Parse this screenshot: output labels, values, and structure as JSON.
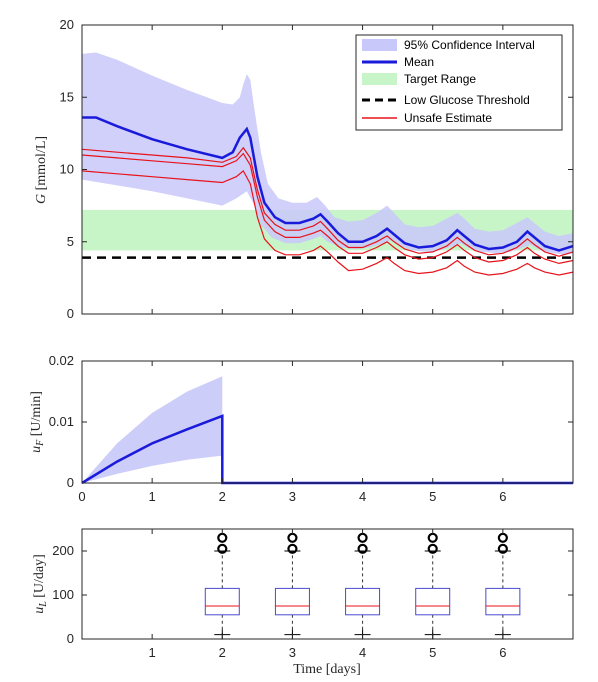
{
  "colors": {
    "ci_fill": "#c8c8fa",
    "mean": "#1a1adb",
    "target_fill": "#c8f5c8",
    "threshold": "#000000",
    "unsafe": "#e8121a",
    "box_edge": "#4a4ad0",
    "box_median": "#e8121a",
    "outlier": "#000000",
    "axis": "#262626"
  },
  "chart_data": [
    {
      "type": "line",
      "ylabel": "G [mmol/L]",
      "xlim": [
        0,
        7
      ],
      "ylim": [
        0,
        20
      ],
      "yticks": [
        "0",
        "5",
        "10",
        "15",
        "20"
      ],
      "legend_position": "top-right",
      "legend": [
        "95% Confidence Interval",
        "Mean",
        "Target Range",
        "Low Glucose Threshold",
        "Unsafe Estimate"
      ],
      "target_range": [
        4.4,
        7.2
      ],
      "low_glucose_threshold": 3.9,
      "ci_upper": [
        [
          0,
          18.0
        ],
        [
          0.2,
          18.1
        ],
        [
          0.5,
          17.6
        ],
        [
          1.0,
          16.5
        ],
        [
          1.5,
          15.5
        ],
        [
          2.0,
          14.6
        ],
        [
          2.15,
          14.5
        ],
        [
          2.25,
          15.0
        ],
        [
          2.3,
          15.9
        ],
        [
          2.35,
          16.6
        ],
        [
          2.4,
          16.2
        ],
        [
          2.45,
          14.4
        ],
        [
          2.55,
          11.2
        ],
        [
          2.65,
          9.0
        ],
        [
          2.8,
          8.0
        ],
        [
          3.0,
          7.7
        ],
        [
          3.2,
          7.7
        ],
        [
          3.35,
          8.1
        ],
        [
          3.45,
          7.6
        ],
        [
          3.6,
          6.7
        ],
        [
          3.8,
          6.4
        ],
        [
          4.0,
          6.5
        ],
        [
          4.2,
          7.0
        ],
        [
          4.35,
          7.5
        ],
        [
          4.45,
          7.0
        ],
        [
          4.6,
          6.2
        ],
        [
          4.8,
          6.0
        ],
        [
          5.0,
          6.1
        ],
        [
          5.2,
          6.6
        ],
        [
          5.35,
          7.0
        ],
        [
          5.45,
          6.6
        ],
        [
          5.6,
          5.9
        ],
        [
          5.8,
          5.7
        ],
        [
          6.0,
          5.8
        ],
        [
          6.2,
          6.3
        ],
        [
          6.35,
          6.7
        ],
        [
          6.45,
          6.3
        ],
        [
          6.6,
          5.7
        ],
        [
          6.8,
          5.4
        ],
        [
          7.0,
          5.6
        ]
      ],
      "ci_lower": [
        [
          0,
          9.3
        ],
        [
          0.5,
          8.9
        ],
        [
          1.0,
          8.5
        ],
        [
          1.5,
          8.0
        ],
        [
          2.0,
          7.5
        ],
        [
          2.2,
          8.0
        ],
        [
          2.35,
          8.5
        ],
        [
          2.45,
          7.6
        ],
        [
          2.55,
          6.2
        ],
        [
          2.7,
          5.3
        ],
        [
          2.9,
          4.9
        ],
        [
          3.1,
          4.9
        ],
        [
          3.3,
          5.2
        ],
        [
          3.4,
          5.4
        ],
        [
          3.5,
          5.0
        ],
        [
          3.7,
          4.6
        ],
        [
          3.9,
          4.5
        ],
        [
          4.1,
          4.6
        ],
        [
          4.3,
          4.9
        ],
        [
          4.4,
          5.1
        ],
        [
          4.5,
          4.8
        ],
        [
          4.7,
          4.4
        ],
        [
          4.9,
          4.3
        ],
        [
          5.1,
          4.4
        ],
        [
          5.3,
          4.7
        ],
        [
          5.4,
          4.9
        ],
        [
          5.5,
          4.6
        ],
        [
          5.7,
          4.3
        ],
        [
          5.9,
          4.2
        ],
        [
          6.1,
          4.3
        ],
        [
          6.3,
          4.6
        ],
        [
          6.4,
          4.8
        ],
        [
          6.5,
          4.5
        ],
        [
          6.7,
          4.2
        ],
        [
          6.9,
          4.1
        ],
        [
          7.0,
          4.2
        ]
      ],
      "series": [
        {
          "name": "Mean",
          "points": [
            [
              0,
              13.6
            ],
            [
              0.2,
              13.6
            ],
            [
              0.5,
              13.0
            ],
            [
              1.0,
              12.1
            ],
            [
              1.5,
              11.4
            ],
            [
              2.0,
              10.8
            ],
            [
              2.15,
              11.2
            ],
            [
              2.25,
              12.2
            ],
            [
              2.35,
              12.8
            ],
            [
              2.4,
              12.2
            ],
            [
              2.5,
              9.5
            ],
            [
              2.6,
              7.7
            ],
            [
              2.75,
              6.7
            ],
            [
              2.9,
              6.3
            ],
            [
              3.1,
              6.3
            ],
            [
              3.3,
              6.6
            ],
            [
              3.4,
              6.9
            ],
            [
              3.5,
              6.4
            ],
            [
              3.65,
              5.6
            ],
            [
              3.8,
              5.0
            ],
            [
              4.0,
              5.0
            ],
            [
              4.2,
              5.4
            ],
            [
              4.35,
              5.9
            ],
            [
              4.45,
              5.5
            ],
            [
              4.6,
              4.9
            ],
            [
              4.8,
              4.6
            ],
            [
              5.0,
              4.7
            ],
            [
              5.2,
              5.1
            ],
            [
              5.35,
              5.8
            ],
            [
              5.45,
              5.4
            ],
            [
              5.6,
              4.8
            ],
            [
              5.8,
              4.5
            ],
            [
              6.0,
              4.6
            ],
            [
              6.2,
              5.0
            ],
            [
              6.35,
              5.7
            ],
            [
              6.45,
              5.3
            ],
            [
              6.6,
              4.7
            ],
            [
              6.8,
              4.4
            ],
            [
              7.0,
              4.7
            ]
          ]
        },
        {
          "name": "Unsafe Estimate",
          "points": [
            [
              0,
              11.4
            ],
            [
              0.5,
              11.2
            ],
            [
              1.0,
              11.0
            ],
            [
              1.5,
              10.8
            ],
            [
              2.0,
              10.5
            ],
            [
              2.2,
              10.9
            ],
            [
              2.3,
              11.5
            ],
            [
              2.4,
              10.8
            ],
            [
              2.5,
              8.6
            ],
            [
              2.6,
              7.0
            ],
            [
              2.75,
              6.2
            ],
            [
              2.9,
              5.8
            ],
            [
              3.1,
              5.8
            ],
            [
              3.3,
              6.1
            ],
            [
              3.4,
              6.4
            ],
            [
              3.5,
              5.9
            ],
            [
              3.65,
              5.1
            ],
            [
              3.8,
              4.6
            ],
            [
              4.0,
              4.6
            ],
            [
              4.2,
              5.0
            ],
            [
              4.35,
              5.4
            ],
            [
              4.45,
              5.0
            ],
            [
              4.6,
              4.5
            ],
            [
              4.8,
              4.2
            ],
            [
              5.0,
              4.3
            ],
            [
              5.2,
              4.7
            ],
            [
              5.35,
              5.3
            ],
            [
              5.45,
              4.9
            ],
            [
              5.6,
              4.4
            ],
            [
              5.8,
              4.1
            ],
            [
              6.0,
              4.2
            ],
            [
              6.2,
              4.6
            ],
            [
              6.35,
              5.2
            ],
            [
              6.45,
              4.8
            ],
            [
              6.6,
              4.3
            ],
            [
              6.8,
              4.0
            ],
            [
              7.0,
              4.3
            ]
          ]
        },
        {
          "points": [
            [
              0,
              11.0
            ],
            [
              0.5,
              10.8
            ],
            [
              1.0,
              10.6
            ],
            [
              1.5,
              10.4
            ],
            [
              2.0,
              10.2
            ],
            [
              2.2,
              10.6
            ],
            [
              2.3,
              11.1
            ],
            [
              2.4,
              10.3
            ],
            [
              2.5,
              8.1
            ],
            [
              2.6,
              6.5
            ],
            [
              2.75,
              5.7
            ],
            [
              2.9,
              5.3
            ],
            [
              3.1,
              5.3
            ],
            [
              3.3,
              5.6
            ],
            [
              3.4,
              5.8
            ],
            [
              3.5,
              5.4
            ],
            [
              3.65,
              4.7
            ],
            [
              3.8,
              4.2
            ],
            [
              4.0,
              4.2
            ],
            [
              4.2,
              4.6
            ],
            [
              4.35,
              5.0
            ],
            [
              4.45,
              4.6
            ],
            [
              4.6,
              4.1
            ],
            [
              4.8,
              3.8
            ],
            [
              5.0,
              3.9
            ],
            [
              5.2,
              4.3
            ],
            [
              5.35,
              4.8
            ],
            [
              5.45,
              4.4
            ],
            [
              5.6,
              3.9
            ],
            [
              5.8,
              3.6
            ],
            [
              6.0,
              3.7
            ],
            [
              6.2,
              4.1
            ],
            [
              6.35,
              4.6
            ],
            [
              6.45,
              4.2
            ],
            [
              6.6,
              3.8
            ],
            [
              6.8,
              3.5
            ],
            [
              7.0,
              3.7
            ]
          ]
        },
        {
          "points": [
            [
              0,
              9.9
            ],
            [
              0.5,
              9.7
            ],
            [
              1.0,
              9.5
            ],
            [
              1.5,
              9.3
            ],
            [
              2.0,
              9.1
            ],
            [
              2.2,
              9.5
            ],
            [
              2.3,
              9.9
            ],
            [
              2.4,
              9.0
            ],
            [
              2.5,
              6.7
            ],
            [
              2.6,
              5.2
            ],
            [
              2.75,
              4.4
            ],
            [
              2.9,
              4.1
            ],
            [
              3.1,
              4.1
            ],
            [
              3.3,
              4.4
            ],
            [
              3.4,
              4.7
            ],
            [
              3.5,
              4.3
            ],
            [
              3.65,
              3.6
            ],
            [
              3.8,
              3.0
            ],
            [
              4.0,
              3.1
            ],
            [
              4.2,
              3.5
            ],
            [
              4.35,
              3.9
            ],
            [
              4.45,
              3.5
            ],
            [
              4.6,
              3.0
            ],
            [
              4.8,
              2.8
            ],
            [
              5.0,
              2.9
            ],
            [
              5.2,
              3.2
            ],
            [
              5.35,
              3.7
            ],
            [
              5.45,
              3.3
            ],
            [
              5.6,
              2.9
            ],
            [
              5.8,
              2.7
            ],
            [
              6.0,
              2.8
            ],
            [
              6.2,
              3.1
            ],
            [
              6.35,
              3.5
            ],
            [
              6.45,
              3.2
            ],
            [
              6.6,
              2.9
            ],
            [
              6.8,
              2.7
            ],
            [
              7.0,
              2.9
            ]
          ]
        }
      ]
    },
    {
      "type": "line",
      "ylabel": "u_F [U/min]",
      "xlim": [
        0,
        7
      ],
      "ylim": [
        0,
        0.02
      ],
      "xticks": [
        "0",
        "1",
        "2",
        "3",
        "4",
        "5",
        "6"
      ],
      "yticks": [
        "0",
        "0.01",
        "0.02"
      ],
      "ci_upper": [
        [
          0,
          0
        ],
        [
          0.5,
          0.0065
        ],
        [
          1.0,
          0.0115
        ],
        [
          1.5,
          0.015
        ],
        [
          2.0,
          0.0175
        ]
      ],
      "ci_lower": [
        [
          0,
          0
        ],
        [
          0.5,
          0.0015
        ],
        [
          1.0,
          0.0028
        ],
        [
          1.5,
          0.0038
        ],
        [
          2.0,
          0.0045
        ]
      ],
      "series": [
        {
          "name": "Mean",
          "points": [
            [
              0,
              0
            ],
            [
              0.5,
              0.0035
            ],
            [
              1.0,
              0.0065
            ],
            [
              1.5,
              0.0088
            ],
            [
              2.0,
              0.011
            ],
            [
              2.0,
              0
            ],
            [
              7.0,
              0
            ]
          ]
        }
      ]
    },
    {
      "type": "box",
      "xlabel": "Time [days]",
      "ylabel": "u_L [U/day]",
      "xlim": [
        0,
        7
      ],
      "ylim": [
        0,
        250
      ],
      "xticks": [
        "1",
        "2",
        "3",
        "4",
        "5",
        "6"
      ],
      "yticks": [
        "0",
        "100",
        "200"
      ],
      "boxes": [
        {
          "x": 2,
          "q1": 55,
          "median": 75,
          "q3": 115,
          "whisker_low": 10,
          "whisker_high": 200,
          "outliers": [
            205,
            230
          ]
        },
        {
          "x": 3,
          "q1": 55,
          "median": 75,
          "q3": 115,
          "whisker_low": 10,
          "whisker_high": 200,
          "outliers": [
            205,
            230
          ]
        },
        {
          "x": 4,
          "q1": 55,
          "median": 75,
          "q3": 115,
          "whisker_low": 10,
          "whisker_high": 200,
          "outliers": [
            205,
            230
          ]
        },
        {
          "x": 5,
          "q1": 55,
          "median": 75,
          "q3": 115,
          "whisker_low": 10,
          "whisker_high": 200,
          "outliers": [
            205,
            230
          ]
        },
        {
          "x": 6,
          "q1": 55,
          "median": 75,
          "q3": 115,
          "whisker_low": 10,
          "whisker_high": 200,
          "outliers": [
            205,
            230
          ]
        }
      ]
    }
  ]
}
